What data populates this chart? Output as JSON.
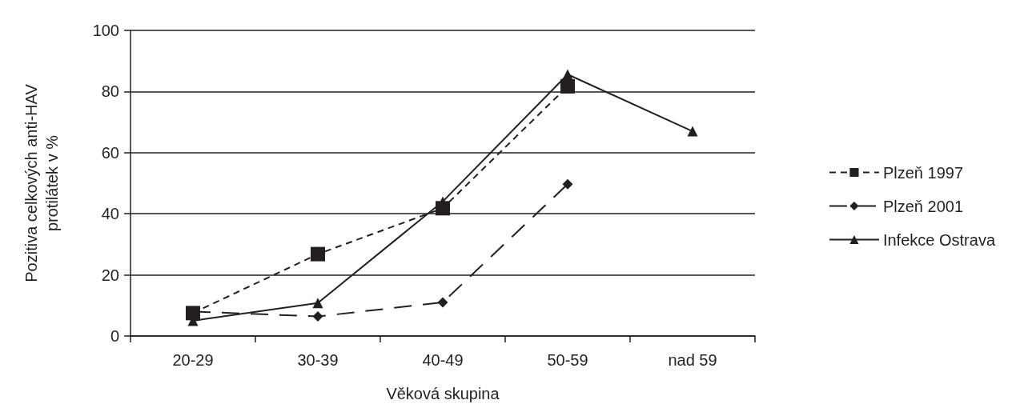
{
  "chart_data": {
    "type": "line",
    "xlabel": "Věková skupina",
    "ylabel": "Pozitiva celkových anti-HAV\nprotilátek v %",
    "categories": [
      "20-29",
      "30-39",
      "40-49",
      "50-59",
      "nad 59"
    ],
    "series": [
      {
        "name": "Plzeň 1997",
        "color": "#231f20",
        "marker": "square",
        "line_style": "dashed",
        "values": [
          7.5,
          26.8,
          41.8,
          81.7,
          null
        ]
      },
      {
        "name": "Plzeň 2001",
        "color": "#231f20",
        "marker": "diamond",
        "line_style": "longdash",
        "values": [
          8,
          6.4,
          11,
          49.7,
          null
        ]
      },
      {
        "name": "Infekce Ostrava",
        "color": "#231f20",
        "marker": "triangle",
        "line_style": "solid",
        "values": [
          5,
          10.8,
          44,
          85.6,
          67
        ]
      }
    ],
    "ylim": [
      0,
      100
    ],
    "yticks": [
      0,
      20,
      40,
      60,
      80,
      100
    ],
    "grid": "y",
    "legend": "right"
  }
}
